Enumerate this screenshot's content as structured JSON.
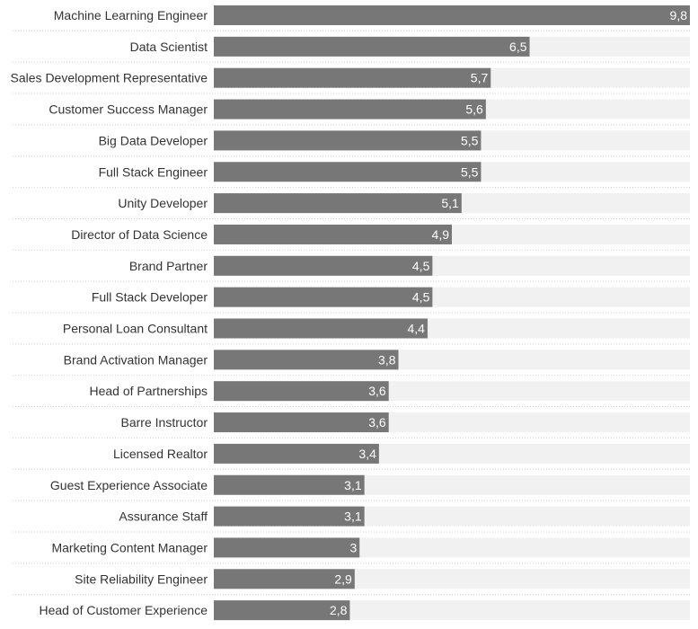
{
  "chart_data": {
    "type": "bar",
    "orientation": "horizontal",
    "title": "",
    "xlabel": "",
    "ylabel": "",
    "xlim": [
      0,
      9.8
    ],
    "grid": false,
    "legend": "none",
    "decimal_separator": ",",
    "colors": {
      "bar": "#777777",
      "track": "#f1f1f1",
      "separator": "#d0d0d0",
      "label": "#333333",
      "value_label": "#ffffff"
    },
    "categories": [
      "Machine Learning Engineer",
      "Data Scientist",
      "Sales Development Representative",
      "Customer Success Manager",
      "Big Data Developer",
      "Full Stack Engineer",
      "Unity Developer",
      "Director of Data Science",
      "Brand Partner",
      "Full Stack Developer",
      "Personal Loan Consultant",
      "Brand Activation Manager",
      "Head of Partnerships",
      "Barre Instructor",
      "Licensed Realtor",
      "Guest Experience Associate",
      "Assurance Staff",
      "Marketing Content Manager",
      "Site Reliability Engineer",
      "Head of Customer Experience"
    ],
    "values": [
      9.8,
      6.5,
      5.7,
      5.6,
      5.5,
      5.5,
      5.1,
      4.9,
      4.5,
      4.5,
      4.4,
      3.8,
      3.6,
      3.6,
      3.4,
      3.1,
      3.1,
      3.0,
      2.9,
      2.8
    ],
    "value_labels": [
      "9,8",
      "6,5",
      "5,7",
      "5,6",
      "5,5",
      "5,5",
      "5,1",
      "4,9",
      "4,5",
      "4,5",
      "4,4",
      "3,8",
      "3,6",
      "3,6",
      "3,4",
      "3,1",
      "3,1",
      "3",
      "2,9",
      "2,8"
    ]
  }
}
